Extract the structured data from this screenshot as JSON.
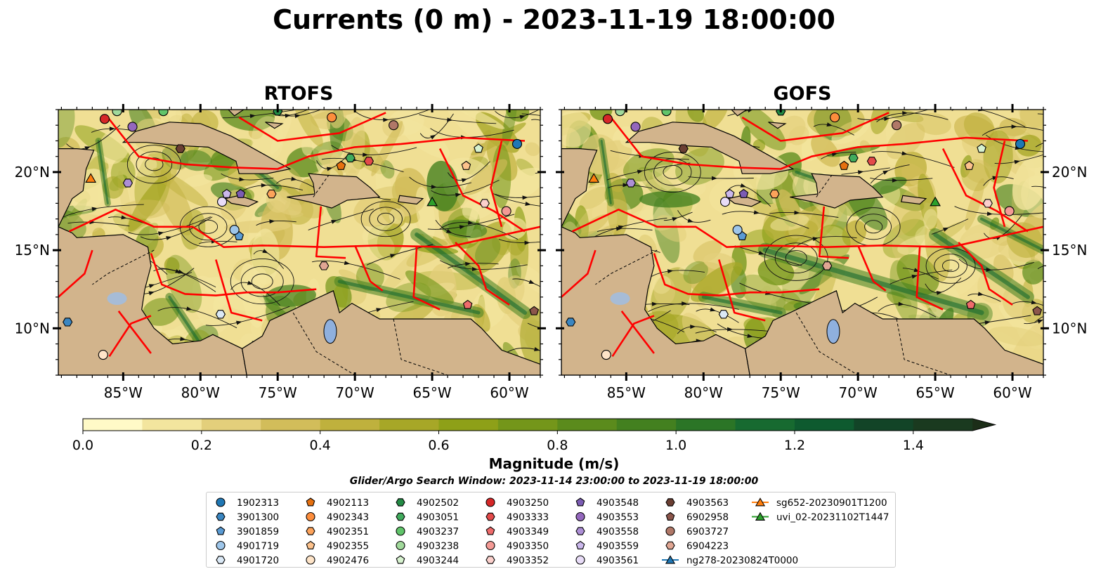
{
  "chart_data": {
    "type": "heatmap",
    "title": "Currents (0 m) - 2023-11-19 18:00:00",
    "panels": [
      {
        "title": "RTOFS"
      },
      {
        "title": "GOFS"
      }
    ],
    "xlim": [
      -89.2,
      -58
    ],
    "ylim": [
      7,
      24
    ],
    "x_ticks": [
      {
        "value": -85,
        "label": "85°W"
      },
      {
        "value": -80,
        "label": "80°W"
      },
      {
        "value": -75,
        "label": "75°W"
      },
      {
        "value": -70,
        "label": "70°W"
      },
      {
        "value": -65,
        "label": "65°W"
      },
      {
        "value": -60,
        "label": "60°W"
      }
    ],
    "y_ticks": [
      {
        "value": 10,
        "label": "10°N"
      },
      {
        "value": 15,
        "label": "15°N"
      },
      {
        "value": 20,
        "label": "20°N"
      }
    ],
    "colorbar": {
      "label": "Magnitude (m/s)",
      "min": 0,
      "max": 1.5,
      "extend": "max",
      "ticks": [
        "0.0",
        "0.2",
        "0.4",
        "0.6",
        "0.8",
        "1.0",
        "1.2",
        "1.4"
      ],
      "colors": [
        "#fffac7",
        "#f3e59e",
        "#e3cf7b",
        "#d2bd5a",
        "#bfb13d",
        "#a7a727",
        "#8ea018",
        "#74961a",
        "#5b8b1c",
        "#43801f",
        "#2b7526",
        "#176a30",
        "#0e5a2f",
        "#124427",
        "#1a3a1f",
        "#1c2e18"
      ]
    },
    "search_window": "Glider/Argo Search Window: 2023-11-14 23:00:00 to 2023-11-19 18:00:00",
    "legend": [
      {
        "label": "1902313",
        "marker": "circle",
        "color": "#1f77b4"
      },
      {
        "label": "3901300",
        "marker": "hexagon",
        "color": "#3b86c1"
      },
      {
        "label": "3901859",
        "marker": "pentagon",
        "color": "#5a9bd4"
      },
      {
        "label": "4901719",
        "marker": "circle",
        "color": "#9ec6ea"
      },
      {
        "label": "4901720",
        "marker": "hexagon",
        "color": "#dbe9f6"
      },
      {
        "label": "4902113",
        "marker": "pentagon",
        "color": "#e6700f"
      },
      {
        "label": "4902343",
        "marker": "circle",
        "color": "#fd8d3c"
      },
      {
        "label": "4902351",
        "marker": "hexagon",
        "color": "#fda35b"
      },
      {
        "label": "4902355",
        "marker": "pentagon",
        "color": "#fdc28c"
      },
      {
        "label": "4902476",
        "marker": "circle",
        "color": "#fee4c8"
      },
      {
        "label": "4902502",
        "marker": "hexagon",
        "color": "#238b45"
      },
      {
        "label": "4903051",
        "marker": "hexagon",
        "color": "#41ab5d"
      },
      {
        "label": "4903237",
        "marker": "circle",
        "color": "#60c46a"
      },
      {
        "label": "4903238",
        "marker": "circle",
        "color": "#a1d99b"
      },
      {
        "label": "4903244",
        "marker": "pentagon",
        "color": "#d7f2cf"
      },
      {
        "label": "4903250",
        "marker": "circle",
        "color": "#d62728"
      },
      {
        "label": "4903333",
        "marker": "hexagon",
        "color": "#e34a4a"
      },
      {
        "label": "4903349",
        "marker": "pentagon",
        "color": "#ef6b6b"
      },
      {
        "label": "4903350",
        "marker": "circle",
        "color": "#f49a95"
      },
      {
        "label": "4903352",
        "marker": "hexagon",
        "color": "#fbd0cc"
      },
      {
        "label": "4903548",
        "marker": "pentagon",
        "color": "#7b5cb3"
      },
      {
        "label": "4903553",
        "marker": "circle",
        "color": "#9467bd"
      },
      {
        "label": "4903558",
        "marker": "hexagon",
        "color": "#ad8fd6"
      },
      {
        "label": "4903559",
        "marker": "pentagon",
        "color": "#cbb8ec"
      },
      {
        "label": "4903561",
        "marker": "circle",
        "color": "#e8dcf7"
      },
      {
        "label": "4903563",
        "marker": "hexagon",
        "color": "#6b3f33"
      },
      {
        "label": "6902958",
        "marker": "pentagon",
        "color": "#8c564b"
      },
      {
        "label": "6903727",
        "marker": "circle",
        "color": "#b07868"
      },
      {
        "label": "6904223",
        "marker": "hexagon",
        "color": "#e0a693"
      },
      {
        "label": "ng278-20230824T0000",
        "marker": "triangle-line",
        "color": "#1f77b4"
      },
      {
        "label": "sg652-20230901T1200",
        "marker": "triangle-line",
        "color": "#ff7f0e"
      },
      {
        "label": "uvi_02-20231102T1447",
        "marker": "triangle-line",
        "color": "#2ca02c"
      }
    ],
    "floats": [
      {
        "id": "1902313",
        "lon": -59.5,
        "lat": 21.8
      },
      {
        "id": "3901300",
        "lon": -88.6,
        "lat": 10.4
      },
      {
        "id": "3901859",
        "lon": -77.5,
        "lat": 15.9
      },
      {
        "id": "4901719",
        "lon": -77.8,
        "lat": 16.3
      },
      {
        "id": "4901720",
        "lon": -78.7,
        "lat": 10.9
      },
      {
        "id": "4902113",
        "lon": -70.9,
        "lat": 20.4
      },
      {
        "id": "4902343",
        "lon": -71.5,
        "lat": 23.5
      },
      {
        "id": "4902351",
        "lon": -75.4,
        "lat": 18.6
      },
      {
        "id": "4902355",
        "lon": -62.8,
        "lat": 20.4
      },
      {
        "id": "4902476",
        "lon": -86.3,
        "lat": 8.3
      },
      {
        "id": "4902502",
        "lon": -75.0,
        "lat": 23.9
      },
      {
        "id": "4903051",
        "lon": -70.3,
        "lat": 20.9
      },
      {
        "id": "4903237",
        "lon": -82.4,
        "lat": 23.9
      },
      {
        "id": "4903238",
        "lon": -85.4,
        "lat": 23.9
      },
      {
        "id": "4903244",
        "lon": -62.0,
        "lat": 21.5
      },
      {
        "id": "4903250",
        "lon": -86.2,
        "lat": 23.4
      },
      {
        "id": "4903333",
        "lon": -69.1,
        "lat": 20.7
      },
      {
        "id": "4903349",
        "lon": -62.7,
        "lat": 11.5
      },
      {
        "id": "4903350",
        "lon": -60.2,
        "lat": 17.5
      },
      {
        "id": "4903352",
        "lon": -61.6,
        "lat": 18.0
      },
      {
        "id": "4903548",
        "lon": -77.4,
        "lat": 18.6
      },
      {
        "id": "4903553",
        "lon": -84.4,
        "lat": 22.9
      },
      {
        "id": "4903558",
        "lon": -84.7,
        "lat": 19.3
      },
      {
        "id": "4903559",
        "lon": -78.3,
        "lat": 18.6
      },
      {
        "id": "4903561",
        "lon": -78.6,
        "lat": 18.1
      },
      {
        "id": "4903563",
        "lon": -81.3,
        "lat": 21.5
      },
      {
        "id": "6902958",
        "lon": -58.4,
        "lat": 11.1
      },
      {
        "id": "6903727",
        "lon": -67.5,
        "lat": 23.0
      },
      {
        "id": "6904223",
        "lon": -72.0,
        "lat": 14.0
      }
    ],
    "gliders": [
      {
        "id": "sg652-20230901T1200",
        "lon": -87.1,
        "lat": 19.6
      },
      {
        "id": "uvi_02-20231102T1447",
        "lon": -65.0,
        "lat": 18.1
      }
    ]
  }
}
